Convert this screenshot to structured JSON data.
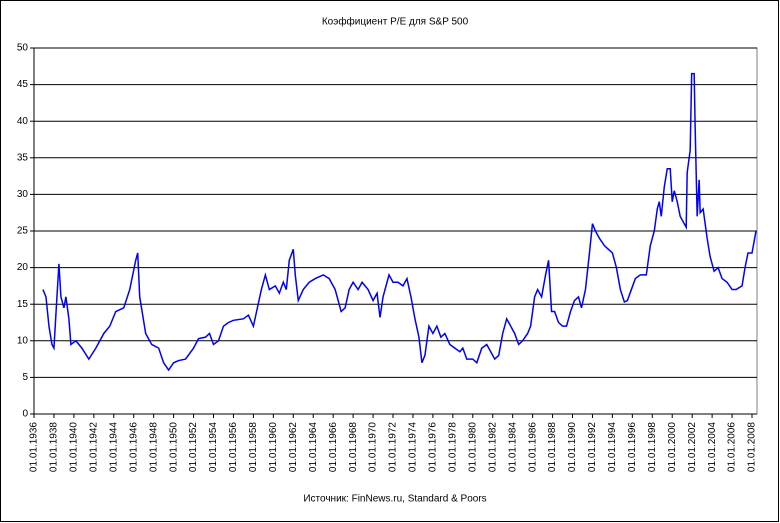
{
  "chart_data": {
    "type": "line",
    "title": "Коэффициент P/E для S&P 500",
    "source": "Источник: FinNews.ru, Standard & Poors",
    "x": [
      1936.9,
      1937.2,
      1937.5,
      1937.8,
      1938.0,
      1938.3,
      1938.5,
      1938.7,
      1939.0,
      1939.2,
      1939.5,
      1939.7,
      1940.2,
      1940.8,
      1941.5,
      1942.2,
      1943.0,
      1943.6,
      1944.2,
      1945.0,
      1945.6,
      1946.2,
      1946.4,
      1946.6,
      1947.2,
      1947.8,
      1948.5,
      1949.0,
      1949.5,
      1950.0,
      1950.5,
      1951.2,
      1952.0,
      1952.5,
      1953.2,
      1953.6,
      1954.0,
      1954.5,
      1955.0,
      1955.5,
      1956.0,
      1957.0,
      1957.5,
      1958.0,
      1958.4,
      1958.8,
      1959.2,
      1959.6,
      1960.2,
      1960.6,
      1961.0,
      1961.3,
      1961.6,
      1962.0,
      1962.2,
      1962.5,
      1963.0,
      1963.6,
      1964.2,
      1965.0,
      1965.6,
      1966.2,
      1966.8,
      1967.2,
      1967.6,
      1968.0,
      1968.5,
      1968.9,
      1969.5,
      1970.0,
      1970.4,
      1970.7,
      1971.0,
      1971.6,
      1972.0,
      1972.5,
      1973.0,
      1973.4,
      1973.8,
      1974.2,
      1974.6,
      1974.9,
      1975.2,
      1975.6,
      1976.0,
      1976.4,
      1976.8,
      1977.2,
      1977.7,
      1978.2,
      1978.7,
      1979.0,
      1979.4,
      1980.0,
      1980.4,
      1980.9,
      1981.4,
      1981.8,
      1982.2,
      1982.6,
      1983.0,
      1983.4,
      1983.8,
      1984.2,
      1984.6,
      1985.0,
      1985.5,
      1985.8,
      1986.2,
      1986.5,
      1986.9,
      1987.3,
      1987.6,
      1987.9,
      1988.2,
      1988.6,
      1989.0,
      1989.4,
      1989.8,
      1990.2,
      1990.6,
      1990.9,
      1991.3,
      1991.7,
      1992.0,
      1992.3,
      1992.7,
      1993.2,
      1993.6,
      1994.0,
      1994.4,
      1994.8,
      1995.2,
      1995.5,
      1995.9,
      1996.3,
      1996.8,
      1997.4,
      1997.8,
      1998.2,
      1998.5,
      1998.7,
      1998.9,
      1999.2,
      1999.5,
      1999.8,
      2000.0,
      2000.2,
      2000.5,
      2000.8,
      2001.2,
      2001.4,
      2001.5,
      2001.8,
      2001.95,
      2002.2,
      2002.3,
      2002.5,
      2002.7,
      2002.8,
      2003.1,
      2003.5,
      2003.8,
      2004.2,
      2004.6,
      2005.0,
      2005.5,
      2006.0,
      2006.4,
      2007.0,
      2007.3,
      2007.6,
      2008.0,
      2008.4
    ],
    "series": [
      {
        "color": "#0000ff",
        "values": [
          17,
          16,
          12,
          9.5,
          9,
          16,
          20.5,
          16,
          14.5,
          16,
          13,
          9.5,
          10,
          9,
          7.5,
          9,
          11,
          12,
          14,
          14.5,
          17,
          21,
          22,
          16,
          11,
          9.5,
          9,
          7,
          6,
          7,
          7.3,
          7.5,
          9,
          10.3,
          10.5,
          11,
          9.5,
          10,
          12,
          12.5,
          12.8,
          13,
          13.5,
          12,
          14.5,
          17,
          19,
          17,
          17.5,
          16.5,
          18,
          17,
          21,
          22.5,
          19,
          15.5,
          17,
          18,
          18.5,
          19,
          18.5,
          17,
          14,
          14.5,
          17,
          18,
          17,
          18,
          17,
          15.5,
          16.5,
          13.2,
          16,
          19,
          18,
          18,
          17.5,
          18.5,
          16,
          13,
          10.5,
          7,
          8,
          12,
          11,
          12,
          10.5,
          11,
          9.5,
          9,
          8.5,
          9,
          7.5,
          7.5,
          7,
          9,
          9.5,
          8.5,
          7.5,
          8,
          11,
          13,
          12,
          11,
          9.5,
          10,
          11,
          12,
          16,
          17,
          16,
          19,
          21,
          14,
          14,
          12.5,
          12,
          12,
          14,
          15.5,
          16,
          14.5,
          17,
          22,
          26,
          25,
          24,
          23,
          22.5,
          22,
          20,
          17,
          15.3,
          15.5,
          17,
          18.5,
          19,
          19,
          23,
          25,
          28,
          29,
          27,
          31,
          33.5,
          33.5,
          29,
          30.5,
          29,
          27,
          26,
          25.5,
          33,
          36,
          46.5,
          46.5,
          39,
          27,
          32,
          27.5,
          28,
          24,
          21.5,
          19.5,
          20,
          18.5,
          18,
          17,
          17,
          17.5,
          20,
          22,
          22,
          25
        ]
      }
    ],
    "xlim": [
      1936,
      2008.5
    ],
    "xticks": [
      {
        "value": 1936,
        "label": "01.01.1936"
      },
      {
        "value": 1938,
        "label": "01.01.1938"
      },
      {
        "value": 1940,
        "label": "01.01.1940"
      },
      {
        "value": 1942,
        "label": "01.01.1942"
      },
      {
        "value": 1944,
        "label": "01.01.1944"
      },
      {
        "value": 1946,
        "label": "01.01.1946"
      },
      {
        "value": 1948,
        "label": "01.01.1948"
      },
      {
        "value": 1950,
        "label": "01.01.1950"
      },
      {
        "value": 1952,
        "label": "01.01.1952"
      },
      {
        "value": 1954,
        "label": "01.01.1954"
      },
      {
        "value": 1956,
        "label": "01.01.1956"
      },
      {
        "value": 1958,
        "label": "01.01.1958"
      },
      {
        "value": 1960,
        "label": "01.01.1960"
      },
      {
        "value": 1962,
        "label": "01.01.1962"
      },
      {
        "value": 1964,
        "label": "01.01.1964"
      },
      {
        "value": 1966,
        "label": "01.01.1966"
      },
      {
        "value": 1968,
        "label": "01.01.1968"
      },
      {
        "value": 1970,
        "label": "01.01.1970"
      },
      {
        "value": 1972,
        "label": "01.01.1972"
      },
      {
        "value": 1974,
        "label": "01.01.1974"
      },
      {
        "value": 1976,
        "label": "01.01.1976"
      },
      {
        "value": 1978,
        "label": "01.01.1978"
      },
      {
        "value": 1980,
        "label": "01.01.1980"
      },
      {
        "value": 1982,
        "label": "01.01.1982"
      },
      {
        "value": 1984,
        "label": "01.01.1984"
      },
      {
        "value": 1986,
        "label": "01.01.1986"
      },
      {
        "value": 1988,
        "label": "01.01.1988"
      },
      {
        "value": 1990,
        "label": "01.01.1990"
      },
      {
        "value": 1992,
        "label": "01.01.1992"
      },
      {
        "value": 1994,
        "label": "01.01.1994"
      },
      {
        "value": 1996,
        "label": "01.01.1996"
      },
      {
        "value": 1998,
        "label": "01.01.1998"
      },
      {
        "value": 2000,
        "label": "01.01.2000"
      },
      {
        "value": 2002,
        "label": "01.01.2002"
      },
      {
        "value": 2004,
        "label": "01.01.2004"
      },
      {
        "value": 2006,
        "label": "01.01.2006"
      },
      {
        "value": 2008,
        "label": "01.01.2008"
      }
    ],
    "ylim": [
      0,
      50
    ],
    "yticks": [
      0,
      5,
      10,
      15,
      20,
      25,
      30,
      35,
      40,
      45,
      50
    ],
    "grid": true
  }
}
